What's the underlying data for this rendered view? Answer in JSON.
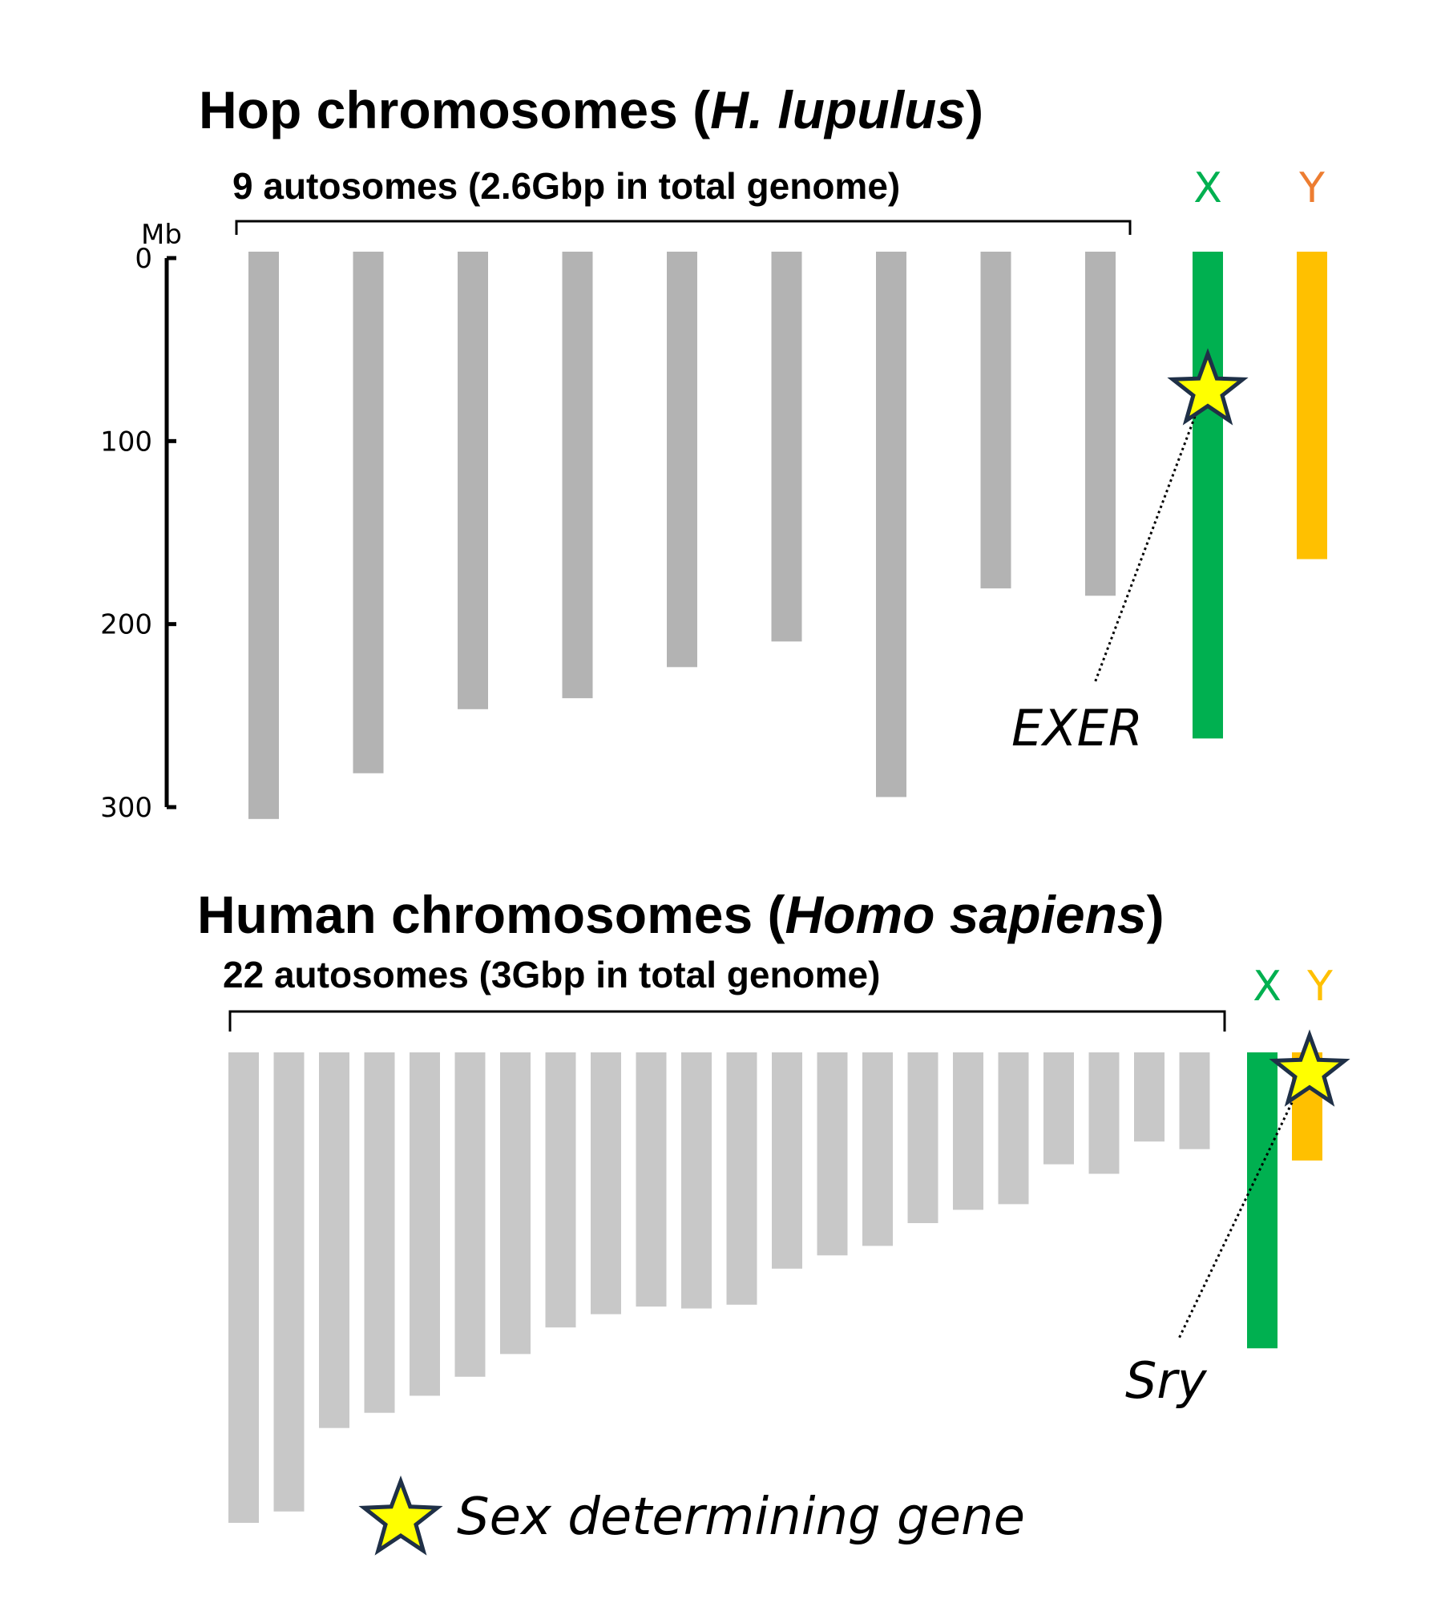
{
  "chart_data": [
    {
      "type": "bar",
      "title": {
        "prefix": "Hop chromosomes (",
        "italic": "H. lupulus",
        "suffix": ")"
      },
      "subtitle": "9 autosomes (2.6Gbp in total genome)",
      "ylabel": "Mb",
      "ylim": [
        0,
        300
      ],
      "yticks": [
        {
          "value": 0,
          "label": "0"
        },
        {
          "value": 100,
          "label": "100"
        },
        {
          "value": 200,
          "label": "200"
        },
        {
          "value": 300,
          "label": "300"
        }
      ],
      "autosomes": [
        310,
        285,
        250,
        244,
        227,
        213,
        298,
        184,
        188
      ],
      "sex_chromosomes": [
        {
          "label": "X",
          "value": 266,
          "color": "#00b050",
          "label_color": "#00b050"
        },
        {
          "label": "Y",
          "value": 168,
          "color": "#ffc000",
          "label_color": "#ed7d31"
        }
      ],
      "sex_gene": {
        "name": "EXER",
        "chromosome": "X",
        "position": 76
      },
      "colors": {
        "autosome": "#b3b3b3"
      }
    },
    {
      "type": "bar",
      "title": {
        "prefix": "Human chromosomes (",
        "italic": "Homo sapiens",
        "suffix": ")"
      },
      "subtitle": "22 autosomes (3Gbp in total genome)",
      "autosomes": [
        248,
        242,
        198,
        190,
        181,
        171,
        159,
        145,
        138,
        134,
        135,
        133,
        114,
        107,
        102,
        90,
        83,
        80,
        59,
        64,
        47,
        51
      ],
      "sex_chromosomes": [
        {
          "label": "X",
          "value": 156,
          "color": "#00b050",
          "label_color": "#00b050"
        },
        {
          "label": "Y",
          "value": 57,
          "color": "#ffc000",
          "label_color": "#ffc000"
        }
      ],
      "sex_gene": {
        "name": "Sry",
        "chromosome": "Y",
        "position": 2.8
      },
      "colors": {
        "autosome": "#c8c8c8"
      }
    }
  ],
  "legend": {
    "label": "Sex determining gene",
    "star_fill": "#ffff00",
    "star_stroke": "#1f3047"
  }
}
